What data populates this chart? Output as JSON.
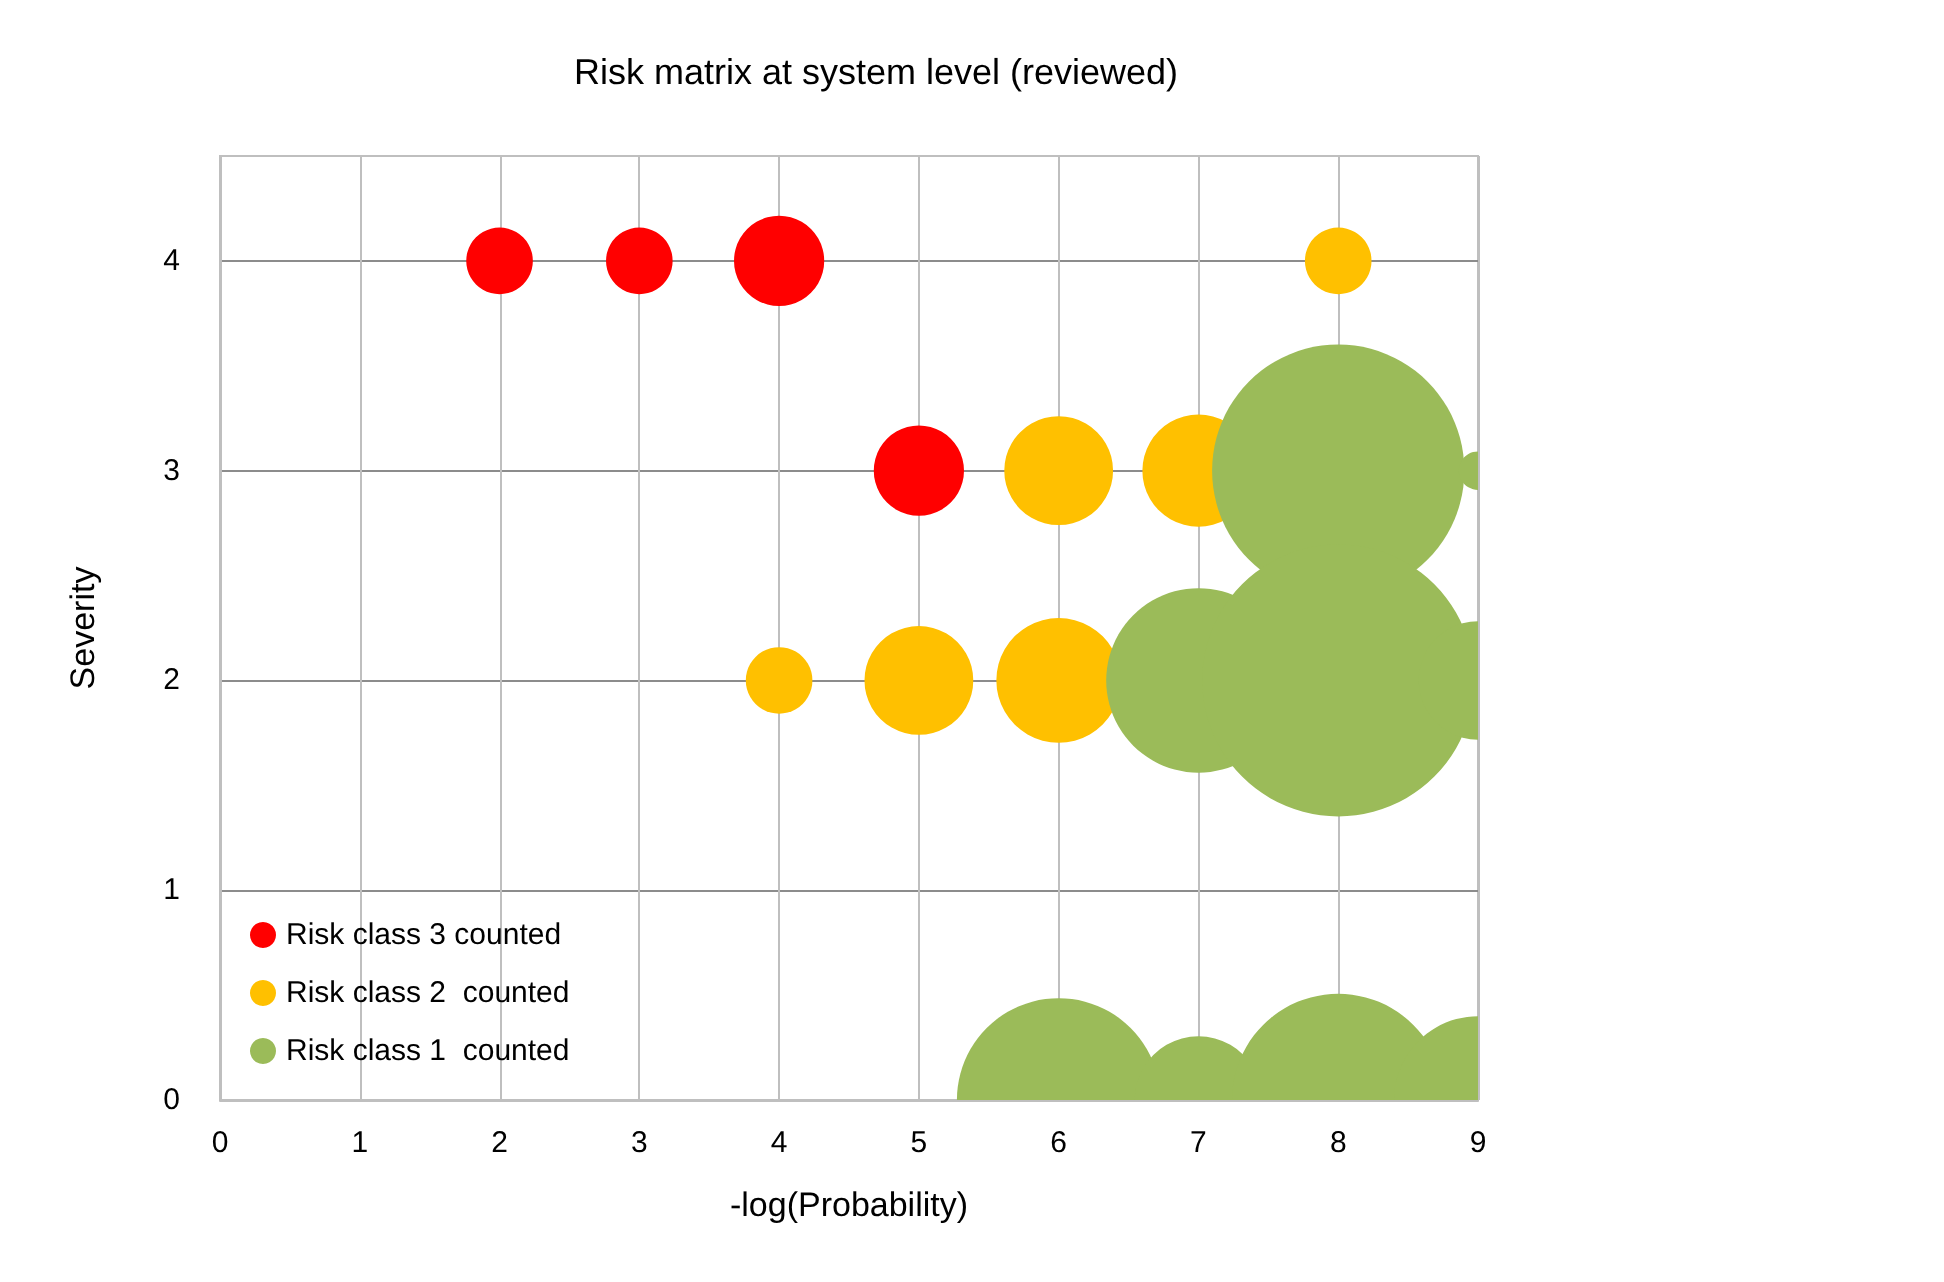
{
  "chart_data": {
    "type": "bubble",
    "title": "Risk matrix at system level (reviewed)",
    "xlabel": "-log(Probability)",
    "ylabel": "Severity",
    "xlim": [
      0,
      9
    ],
    "ylim": [
      0,
      4.5
    ],
    "xticks": [
      0,
      1,
      2,
      3,
      4,
      5,
      6,
      7,
      8,
      9
    ],
    "yticks": [
      0,
      1,
      2,
      3,
      4
    ],
    "grid": true,
    "legend": "bottom left",
    "marker": "circle",
    "series": [
      {
        "name": "Risk class 3 counted",
        "color": "#ff0000",
        "x": [
          2,
          3,
          4,
          5
        ],
        "values": [
          4,
          4,
          4,
          3
        ],
        "sizes": [
          0.06,
          0.06,
          0.11,
          0.11
        ]
      },
      {
        "name": "Risk class 2  counted",
        "color": "#ffc000",
        "x": [
          8,
          6,
          7,
          4,
          5,
          6
        ],
        "values": [
          4,
          3,
          3,
          2,
          2,
          2
        ],
        "sizes": [
          0.06,
          0.16,
          0.17,
          0.06,
          0.16,
          0.21
        ]
      },
      {
        "name": "Risk class 1  counted",
        "color": "#9bbb59",
        "x": [
          8,
          9,
          7,
          8,
          9,
          6,
          7,
          8,
          9
        ],
        "values": [
          3,
          3,
          2,
          2,
          2,
          0,
          0,
          0,
          0
        ],
        "sizes": [
          0.86,
          0.02,
          0.46,
          1,
          0.19,
          0.56,
          0.22,
          0.61,
          0.38
        ]
      }
    ]
  }
}
